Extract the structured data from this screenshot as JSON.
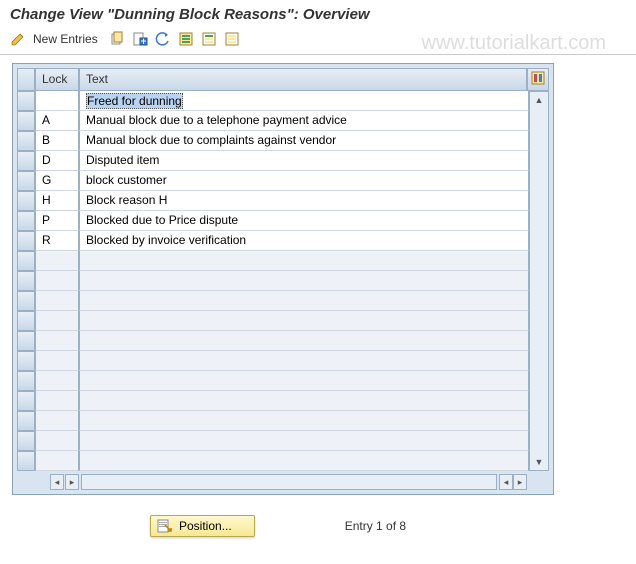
{
  "title": "Change View \"Dunning Block Reasons\": Overview",
  "watermark": "www.tutorialkart.com",
  "toolbar": {
    "new_entries_label": "New Entries"
  },
  "table": {
    "headers": {
      "lock": "Lock",
      "text": "Text"
    },
    "rows": [
      {
        "lock": "",
        "text": "Freed for dunning",
        "highlight": true
      },
      {
        "lock": "A",
        "text": "Manual block due to a telephone payment advice"
      },
      {
        "lock": "B",
        "text": "Manual block due to complaints against vendor"
      },
      {
        "lock": "D",
        "text": "Disputed item"
      },
      {
        "lock": "G",
        "text": "block customer"
      },
      {
        "lock": "H",
        "text": "Block reason H"
      },
      {
        "lock": "P",
        "text": "Blocked due to Price dispute"
      },
      {
        "lock": "R",
        "text": "Blocked by invoice verification"
      }
    ],
    "empty_row_count": 11
  },
  "footer": {
    "position_label": "Position...",
    "entry_label": "Entry 1 of 8"
  },
  "colors": {
    "panel_bg": "#d8e4ef",
    "header_grad_top": "#e8eef5",
    "header_grad_bot": "#c8d8e8",
    "border": "#9bb0c4",
    "highlight": "#b8d4f0"
  }
}
